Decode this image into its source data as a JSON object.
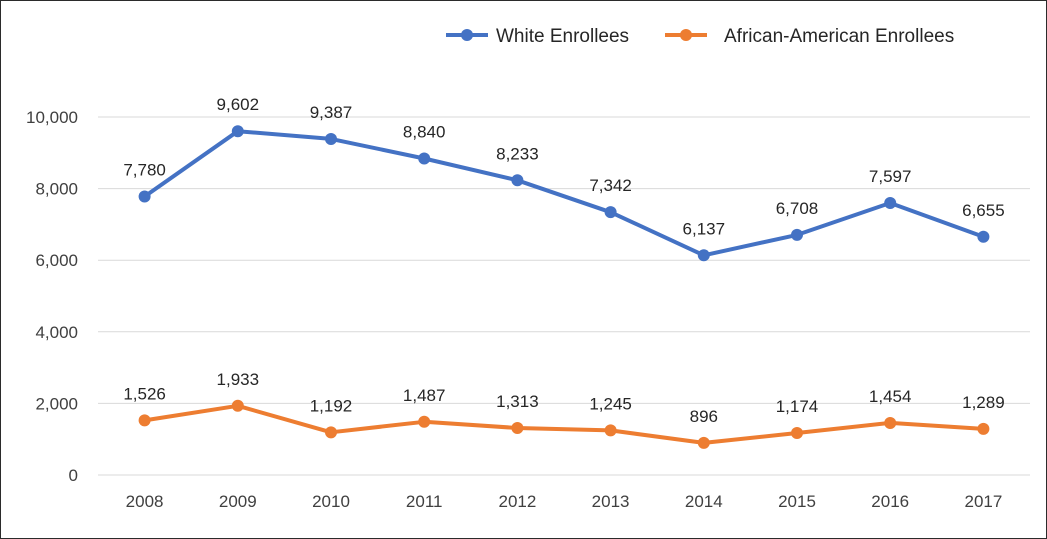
{
  "chart_data": {
    "type": "line",
    "title": "",
    "xlabel": "",
    "ylabel": "",
    "categories": [
      "2008",
      "2009",
      "2010",
      "2011",
      "2012",
      "2013",
      "2014",
      "2015",
      "2016",
      "2017"
    ],
    "ylim": [
      0,
      10000
    ],
    "yticks": [
      0,
      2000,
      4000,
      6000,
      8000,
      10000
    ],
    "ytick_labels": [
      "0",
      "2,000",
      "4,000",
      "6,000",
      "8,000",
      "10,000"
    ],
    "grid": true,
    "legend_position": "top-right",
    "series": [
      {
        "name": "White Enrollees",
        "color": "#4472C4",
        "values": [
          7780,
          9602,
          9387,
          8840,
          8233,
          7342,
          6137,
          6708,
          7597,
          6655
        ],
        "labels": [
          "7,780",
          "9,602",
          "9,387",
          "8,840",
          "8,233",
          "7,342",
          "6,137",
          "6,708",
          "7,597",
          "6,655"
        ]
      },
      {
        "name": "African-American Enrollees",
        "color": "#ED7D31",
        "values": [
          1526,
          1933,
          1192,
          1487,
          1313,
          1245,
          896,
          1174,
          1454,
          1289
        ],
        "labels": [
          "1,526",
          "1,933",
          "1,192",
          "1,487",
          "1,313",
          "1,245",
          "896",
          "1,174",
          "1,454",
          "1,289"
        ]
      }
    ]
  }
}
